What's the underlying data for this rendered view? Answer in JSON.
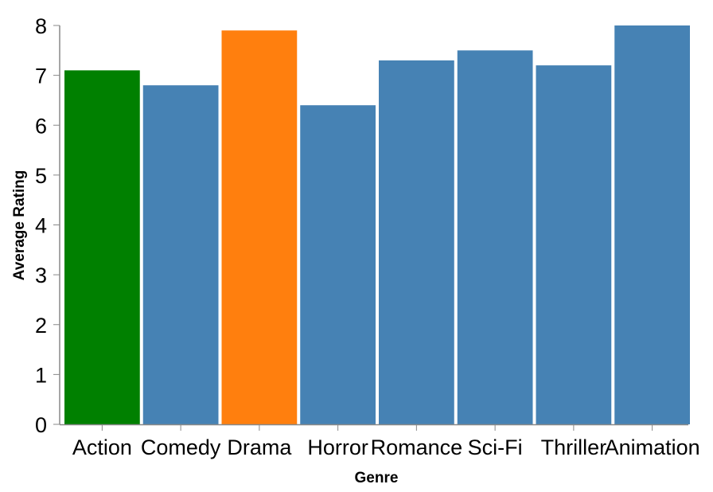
{
  "chart_data": {
    "type": "bar",
    "title": "",
    "xlabel": "Genre",
    "ylabel": "Average Rating",
    "ylim": [
      0,
      8
    ],
    "yticks": [
      0,
      1,
      2,
      3,
      4,
      5,
      6,
      7,
      8
    ],
    "grid": false,
    "categories": [
      "Action",
      "Comedy",
      "Drama",
      "Horror",
      "Romance",
      "Sci-Fi",
      "Thriller",
      "Animation"
    ],
    "values": [
      7.1,
      6.8,
      7.9,
      6.4,
      7.3,
      7.5,
      7.2,
      8.0
    ],
    "colors": [
      "#008000",
      "#4682b4",
      "#ff7f0e",
      "#4682b4",
      "#4682b4",
      "#4682b4",
      "#4682b4",
      "#4682b4"
    ],
    "axis_color": "#888888"
  }
}
